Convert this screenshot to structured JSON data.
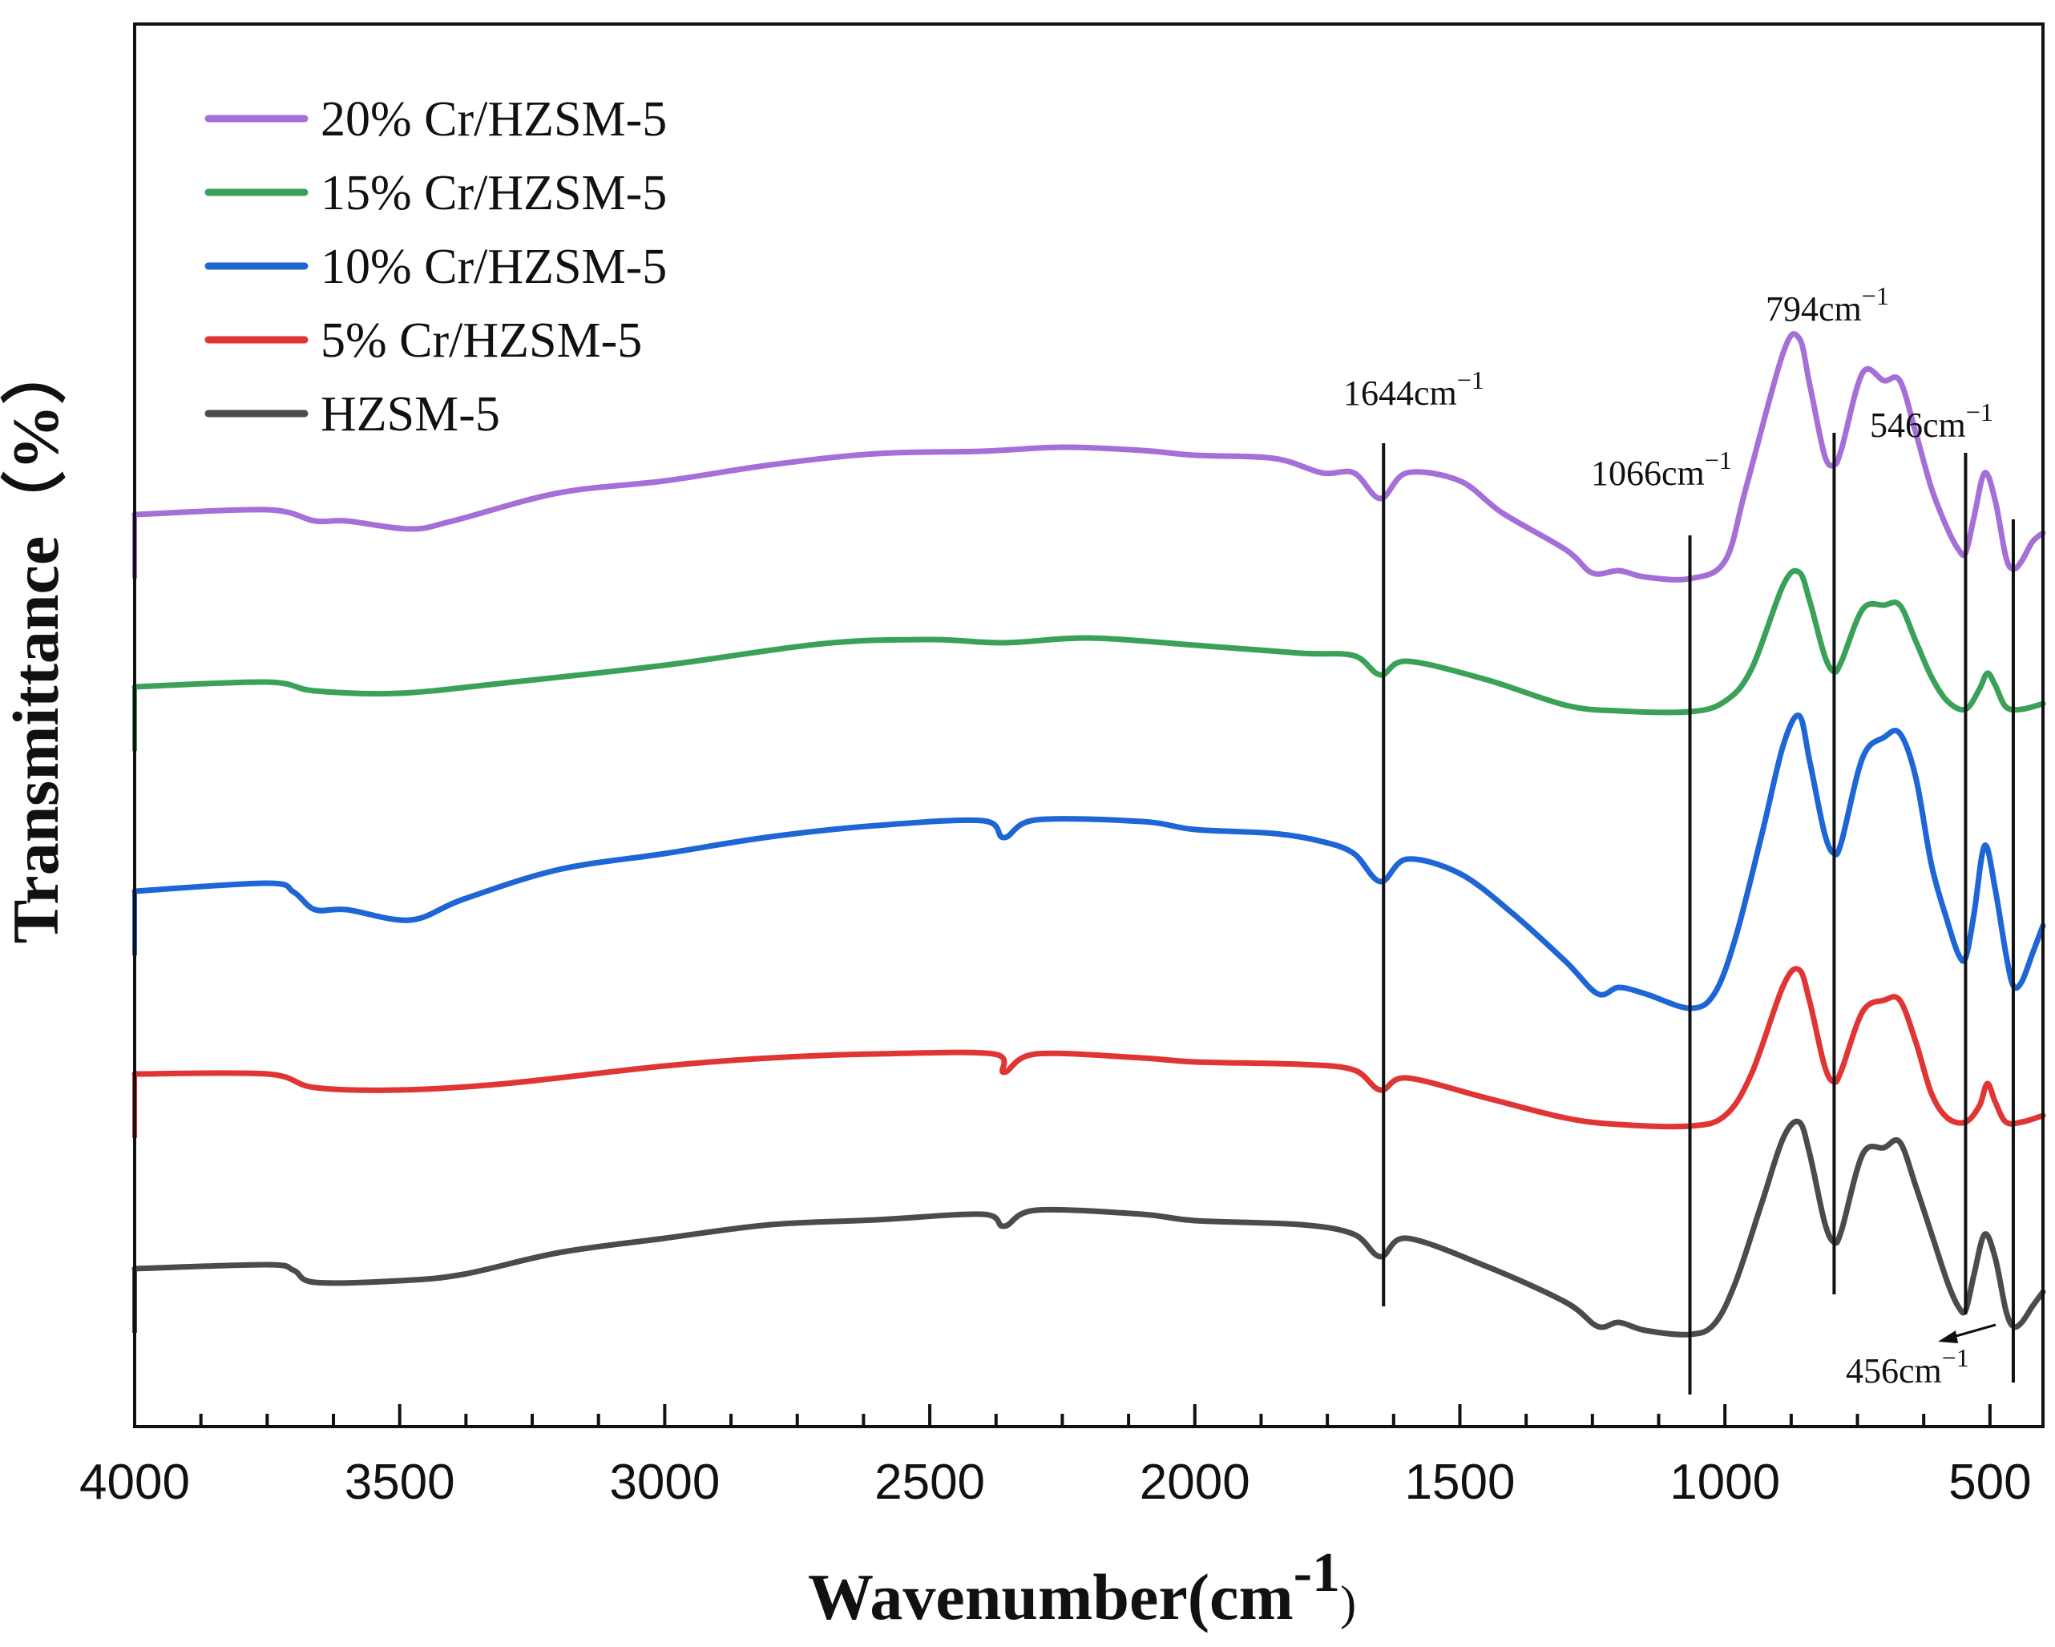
{
  "chart_data": {
    "type": "line",
    "title": "",
    "xlabel": "Wavenumber(cm",
    "xlabel_sup": "-1",
    "xlabel_close": ")",
    "ylabel": "Transmittance（%）",
    "xlim": [
      4000,
      400
    ],
    "x_reversed": true,
    "y_ticks_visible": false,
    "xticks": [
      4000,
      3500,
      3000,
      2500,
      2000,
      1500,
      1000,
      500
    ],
    "xtick_labels": [
      "4000",
      "3500",
      "3000",
      "2500",
      "2000",
      "1500",
      "1000",
      "500"
    ],
    "legend_position": "top-left",
    "series": [
      {
        "name": "20% Cr/HZSM-5",
        "color": "#a56fd8",
        "points": [
          [
            4000,
            642
          ],
          [
            3750,
            636
          ],
          [
            3660,
            650
          ],
          [
            3600,
            650
          ],
          [
            3480,
            660
          ],
          [
            3400,
            650
          ],
          [
            3200,
            615
          ],
          [
            3000,
            600
          ],
          [
            2800,
            580
          ],
          [
            2600,
            566
          ],
          [
            2400,
            563
          ],
          [
            2250,
            558
          ],
          [
            2100,
            562
          ],
          [
            2000,
            568
          ],
          [
            1850,
            572
          ],
          [
            1760,
            590
          ],
          [
            1700,
            590
          ],
          [
            1650,
            622
          ],
          [
            1600,
            590
          ],
          [
            1500,
            600
          ],
          [
            1420,
            640
          ],
          [
            1300,
            686
          ],
          [
            1250,
            715
          ],
          [
            1200,
            712
          ],
          [
            1150,
            720
          ],
          [
            1066,
            722
          ],
          [
            1000,
            700
          ],
          [
            960,
            608
          ],
          [
            890,
            440
          ],
          [
            860,
            422
          ],
          [
            840,
            480
          ],
          [
            812,
            568
          ],
          [
            794,
            580
          ],
          [
            780,
            560
          ],
          [
            740,
            465
          ],
          [
            700,
            475
          ],
          [
            670,
            475
          ],
          [
            640,
            540
          ],
          [
            610,
            610
          ],
          [
            580,
            660
          ],
          [
            560,
            685
          ],
          [
            546,
            690
          ],
          [
            530,
            645
          ],
          [
            510,
            590
          ],
          [
            490,
            625
          ],
          [
            470,
            695
          ],
          [
            456,
            710
          ],
          [
            440,
            700
          ],
          [
            420,
            676
          ],
          [
            400,
            665
          ]
        ]
      },
      {
        "name": "15% Cr/HZSM-5",
        "color": "#3aa158",
        "points": [
          [
            4000,
            857
          ],
          [
            3750,
            851
          ],
          [
            3660,
            862
          ],
          [
            3500,
            865
          ],
          [
            3300,
            852
          ],
          [
            3000,
            830
          ],
          [
            2700,
            803
          ],
          [
            2500,
            798
          ],
          [
            2360,
            802
          ],
          [
            2200,
            796
          ],
          [
            2000,
            805
          ],
          [
            1800,
            815
          ],
          [
            1700,
            818
          ],
          [
            1650,
            842
          ],
          [
            1600,
            825
          ],
          [
            1450,
            848
          ],
          [
            1300,
            880
          ],
          [
            1200,
            887
          ],
          [
            1066,
            888
          ],
          [
            1000,
            875
          ],
          [
            950,
            835
          ],
          [
            890,
            730
          ],
          [
            860,
            714
          ],
          [
            840,
            750
          ],
          [
            812,
            818
          ],
          [
            794,
            838
          ],
          [
            780,
            825
          ],
          [
            740,
            760
          ],
          [
            700,
            755
          ],
          [
            670,
            755
          ],
          [
            640,
            800
          ],
          [
            610,
            845
          ],
          [
            580,
            875
          ],
          [
            546,
            885
          ],
          [
            520,
            860
          ],
          [
            505,
            840
          ],
          [
            490,
            855
          ],
          [
            470,
            882
          ],
          [
            440,
            885
          ],
          [
            400,
            878
          ]
        ]
      },
      {
        "name": "10% Cr/HZSM-5",
        "color": "#1e66d6",
        "points": [
          [
            4000,
            1112
          ],
          [
            3750,
            1102
          ],
          [
            3700,
            1113
          ],
          [
            3660,
            1135
          ],
          [
            3600,
            1135
          ],
          [
            3480,
            1148
          ],
          [
            3380,
            1122
          ],
          [
            3200,
            1085
          ],
          [
            3000,
            1065
          ],
          [
            2800,
            1044
          ],
          [
            2600,
            1030
          ],
          [
            2400,
            1024
          ],
          [
            2360,
            1045
          ],
          [
            2300,
            1023
          ],
          [
            2100,
            1025
          ],
          [
            2000,
            1035
          ],
          [
            1850,
            1040
          ],
          [
            1760,
            1050
          ],
          [
            1700,
            1065
          ],
          [
            1650,
            1100
          ],
          [
            1600,
            1072
          ],
          [
            1500,
            1090
          ],
          [
            1400,
            1140
          ],
          [
            1300,
            1200
          ],
          [
            1240,
            1240
          ],
          [
            1200,
            1232
          ],
          [
            1150,
            1240
          ],
          [
            1066,
            1258
          ],
          [
            1020,
            1240
          ],
          [
            980,
            1170
          ],
          [
            930,
            1040
          ],
          [
            890,
            930
          ],
          [
            860,
            893
          ],
          [
            840,
            950
          ],
          [
            812,
            1040
          ],
          [
            794,
            1065
          ],
          [
            780,
            1050
          ],
          [
            740,
            945
          ],
          [
            700,
            920
          ],
          [
            670,
            915
          ],
          [
            640,
            970
          ],
          [
            610,
            1080
          ],
          [
            580,
            1150
          ],
          [
            560,
            1190
          ],
          [
            546,
            1195
          ],
          [
            530,
            1140
          ],
          [
            510,
            1055
          ],
          [
            490,
            1110
          ],
          [
            470,
            1190
          ],
          [
            456,
            1230
          ],
          [
            440,
            1225
          ],
          [
            420,
            1190
          ],
          [
            400,
            1155
          ]
        ]
      },
      {
        "name": "5% Cr/HZSM-5",
        "color": "#e03535",
        "points": [
          [
            4000,
            1340
          ],
          [
            3750,
            1340
          ],
          [
            3660,
            1357
          ],
          [
            3500,
            1360
          ],
          [
            3300,
            1352
          ],
          [
            3000,
            1330
          ],
          [
            2800,
            1320
          ],
          [
            2600,
            1315
          ],
          [
            2380,
            1315
          ],
          [
            2360,
            1338
          ],
          [
            2300,
            1315
          ],
          [
            2100,
            1320
          ],
          [
            2000,
            1325
          ],
          [
            1800,
            1328
          ],
          [
            1700,
            1335
          ],
          [
            1650,
            1360
          ],
          [
            1600,
            1345
          ],
          [
            1450,
            1370
          ],
          [
            1300,
            1395
          ],
          [
            1200,
            1403
          ],
          [
            1066,
            1405
          ],
          [
            1000,
            1392
          ],
          [
            950,
            1340
          ],
          [
            890,
            1230
          ],
          [
            860,
            1210
          ],
          [
            840,
            1250
          ],
          [
            812,
            1330
          ],
          [
            794,
            1350
          ],
          [
            780,
            1335
          ],
          [
            740,
            1262
          ],
          [
            700,
            1248
          ],
          [
            670,
            1248
          ],
          [
            640,
            1300
          ],
          [
            610,
            1365
          ],
          [
            580,
            1395
          ],
          [
            546,
            1400
          ],
          [
            520,
            1380
          ],
          [
            505,
            1352
          ],
          [
            490,
            1375
          ],
          [
            470,
            1400
          ],
          [
            440,
            1400
          ],
          [
            400,
            1392
          ]
        ]
      },
      {
        "name": "HZSM-5",
        "color": "#4b4b4b",
        "points": [
          [
            4000,
            1583
          ],
          [
            3750,
            1578
          ],
          [
            3700,
            1585
          ],
          [
            3660,
            1600
          ],
          [
            3500,
            1598
          ],
          [
            3380,
            1590
          ],
          [
            3200,
            1563
          ],
          [
            3000,
            1545
          ],
          [
            2800,
            1528
          ],
          [
            2600,
            1522
          ],
          [
            2400,
            1515
          ],
          [
            2360,
            1530
          ],
          [
            2300,
            1510
          ],
          [
            2100,
            1515
          ],
          [
            2000,
            1523
          ],
          [
            1800,
            1528
          ],
          [
            1700,
            1540
          ],
          [
            1650,
            1568
          ],
          [
            1600,
            1545
          ],
          [
            1450,
            1580
          ],
          [
            1300,
            1625
          ],
          [
            1240,
            1655
          ],
          [
            1200,
            1650
          ],
          [
            1150,
            1660
          ],
          [
            1066,
            1665
          ],
          [
            1020,
            1652
          ],
          [
            980,
            1600
          ],
          [
            930,
            1500
          ],
          [
            890,
            1420
          ],
          [
            860,
            1400
          ],
          [
            840,
            1440
          ],
          [
            812,
            1525
          ],
          [
            794,
            1550
          ],
          [
            780,
            1535
          ],
          [
            740,
            1440
          ],
          [
            700,
            1432
          ],
          [
            670,
            1425
          ],
          [
            640,
            1480
          ],
          [
            610,
            1540
          ],
          [
            580,
            1600
          ],
          [
            560,
            1630
          ],
          [
            546,
            1635
          ],
          [
            530,
            1590
          ],
          [
            510,
            1540
          ],
          [
            490,
            1570
          ],
          [
            470,
            1635
          ],
          [
            456,
            1655
          ],
          [
            440,
            1650
          ],
          [
            420,
            1630
          ],
          [
            400,
            1612
          ]
        ]
      }
    ],
    "reference_lines": [
      {
        "label": "1644cm⁻¹",
        "x": 1644,
        "y_top": 553,
        "y_bottom": 1630
      },
      {
        "label": "1066cm⁻¹",
        "x": 1066,
        "y_top": 668,
        "y_bottom": 1740
      },
      {
        "label": "794cm⁻¹",
        "x": 794,
        "y_top": 540,
        "y_bottom": 1615
      },
      {
        "label": "546cm⁻¹",
        "x": 546,
        "y_top": 565,
        "y_bottom": 1640
      },
      {
        "label": "456cm⁻¹",
        "x": 456,
        "y_top": 648,
        "y_bottom": 1725
      }
    ],
    "annotations": {
      "a1644": "1644cm",
      "a1066": "1066cm",
      "a794": "794cm",
      "a546": "546cm",
      "a456": "456cm",
      "sup": "−1"
    }
  }
}
